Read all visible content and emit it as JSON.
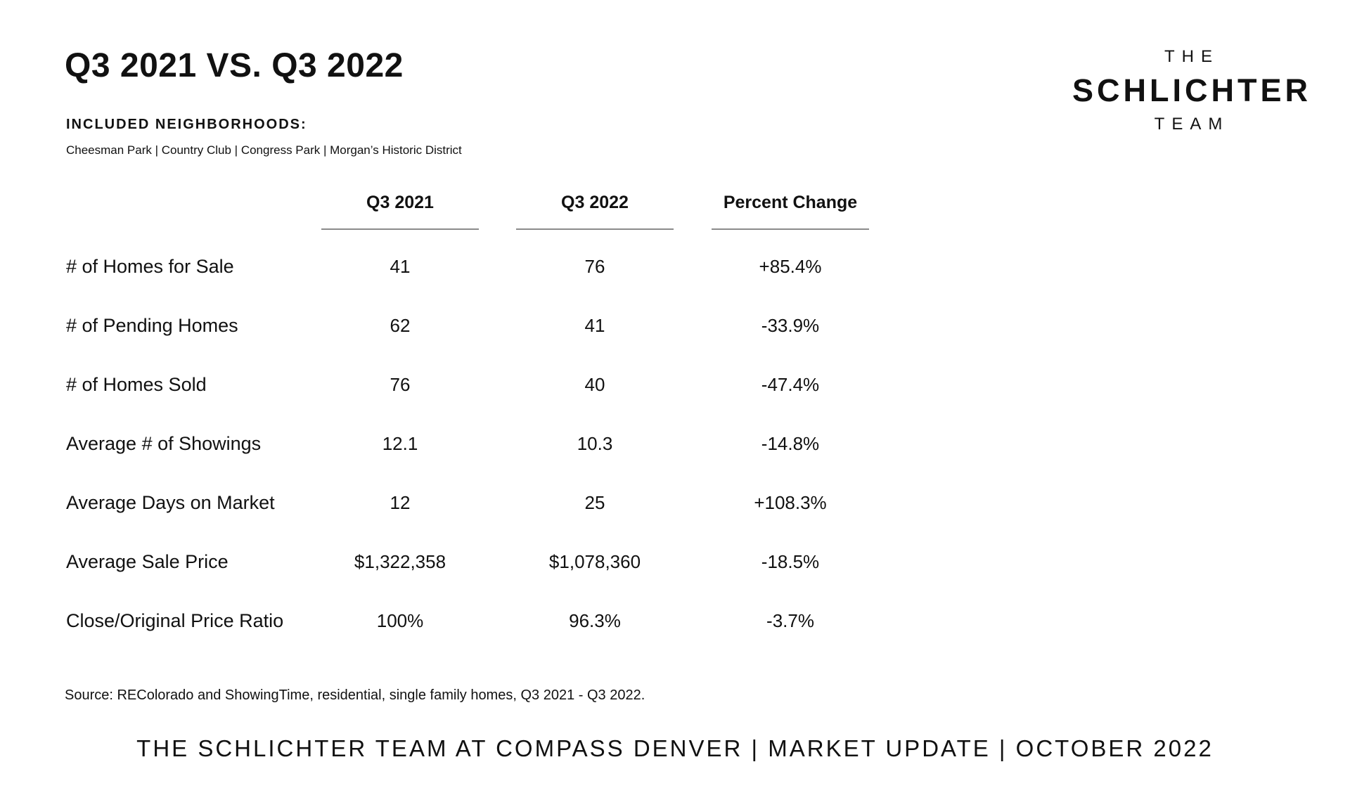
{
  "title": "Q3 2021 VS. Q3 2022",
  "logo": {
    "line1": "THE",
    "line2": "SCHLICHTER",
    "line3": "TEAM"
  },
  "neighborhoods": {
    "label": "INCLUDED NEIGHBORHOODS:",
    "list": "Cheesman Park | Country Club | Congress Park | Morgan’s Historic District"
  },
  "table": {
    "headers": [
      "Q3 2021",
      "Q3 2022",
      "Percent Change"
    ],
    "rows": [
      {
        "label": "# of Homes for Sale",
        "q3_2021": "41",
        "q3_2022": "76",
        "change": "+85.4%"
      },
      {
        "label": "# of Pending Homes",
        "q3_2021": "62",
        "q3_2022": "41",
        "change": "-33.9%"
      },
      {
        "label": "# of Homes Sold",
        "q3_2021": "76",
        "q3_2022": "40",
        "change": "-47.4%"
      },
      {
        "label": "Average # of Showings",
        "q3_2021": "12.1",
        "q3_2022": "10.3",
        "change": "-14.8%"
      },
      {
        "label": "Average Days on Market",
        "q3_2021": "12",
        "q3_2022": "25",
        "change": "+108.3%"
      },
      {
        "label": "Average Sale Price",
        "q3_2021": "$1,322,358",
        "q3_2022": "$1,078,360",
        "change": "-18.5%"
      },
      {
        "label": "Close/Original Price Ratio",
        "q3_2021": "100%",
        "q3_2022": "96.3%",
        "change": "-3.7%"
      }
    ]
  },
  "source": "Source: REColorado and ShowingTime, residential, single family homes, Q3 2021 - Q3 2022.",
  "footer": "THE SCHLICHTER TEAM AT COMPASS DENVER | MARKET UPDATE | OCTOBER 2022"
}
